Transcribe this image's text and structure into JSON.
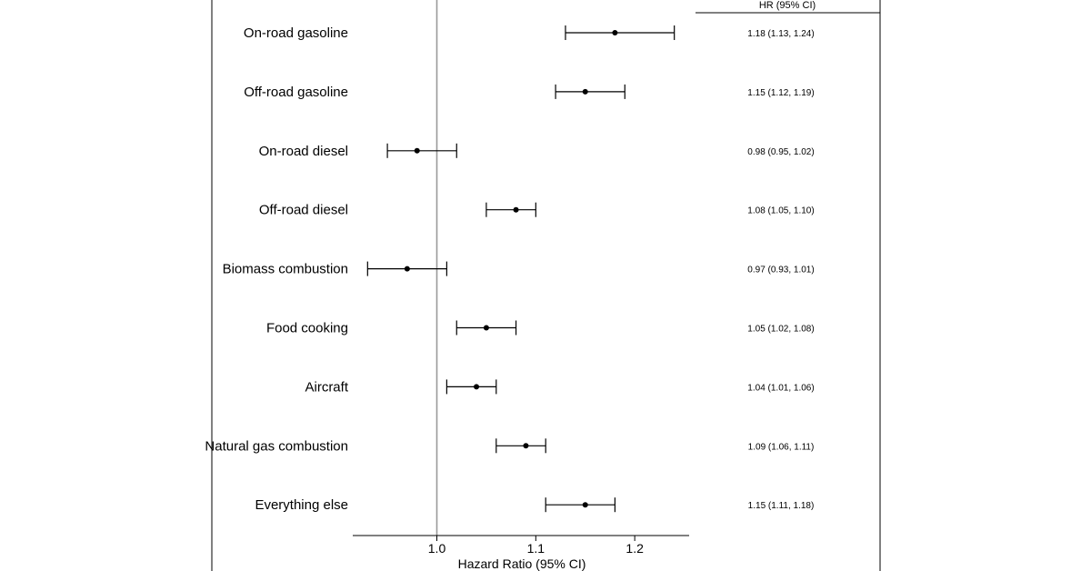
{
  "chart_data": {
    "type": "forest",
    "xlabel": "Hazard Ratio (95% CI)",
    "reference_line": 1.0,
    "xlim": [
      0.915,
      1.255
    ],
    "xticks": [
      {
        "value": 1.0,
        "label": "1.0"
      },
      {
        "value": 1.1,
        "label": "1.1"
      },
      {
        "value": 1.2,
        "label": "1.2"
      }
    ],
    "ci_column_header": "HR (95% CI)",
    "rows": [
      {
        "label": "On-road gasoline",
        "hr": 1.18,
        "lower": 1.13,
        "upper": 1.24,
        "text": "1.18 (1.13, 1.24)"
      },
      {
        "label": "Off-road gasoline",
        "hr": 1.15,
        "lower": 1.12,
        "upper": 1.19,
        "text": "1.15 (1.12, 1.19)"
      },
      {
        "label": "On-road diesel",
        "hr": 0.98,
        "lower": 0.95,
        "upper": 1.02,
        "text": "0.98 (0.95, 1.02)"
      },
      {
        "label": "Off-road diesel",
        "hr": 1.08,
        "lower": 1.05,
        "upper": 1.1,
        "text": "1.08 (1.05, 1.10)"
      },
      {
        "label": "Biomass combustion",
        "hr": 0.97,
        "lower": 0.93,
        "upper": 1.01,
        "text": "0.97 (0.93, 1.01)"
      },
      {
        "label": "Food cooking",
        "hr": 1.05,
        "lower": 1.02,
        "upper": 1.08,
        "text": "1.05 (1.02, 1.08)"
      },
      {
        "label": "Aircraft",
        "hr": 1.04,
        "lower": 1.01,
        "upper": 1.06,
        "text": "1.04 (1.01, 1.06)"
      },
      {
        "label": "Natural gas combustion",
        "hr": 1.09,
        "lower": 1.06,
        "upper": 1.11,
        "text": "1.09 (1.06, 1.11)"
      },
      {
        "label": "Everything else",
        "hr": 1.15,
        "lower": 1.11,
        "upper": 1.18,
        "text": "1.15 (1.11, 1.18)"
      }
    ],
    "colors": {
      "marks": "#000000",
      "reference_line": "#9a9a9a",
      "frame": "#000000"
    }
  }
}
